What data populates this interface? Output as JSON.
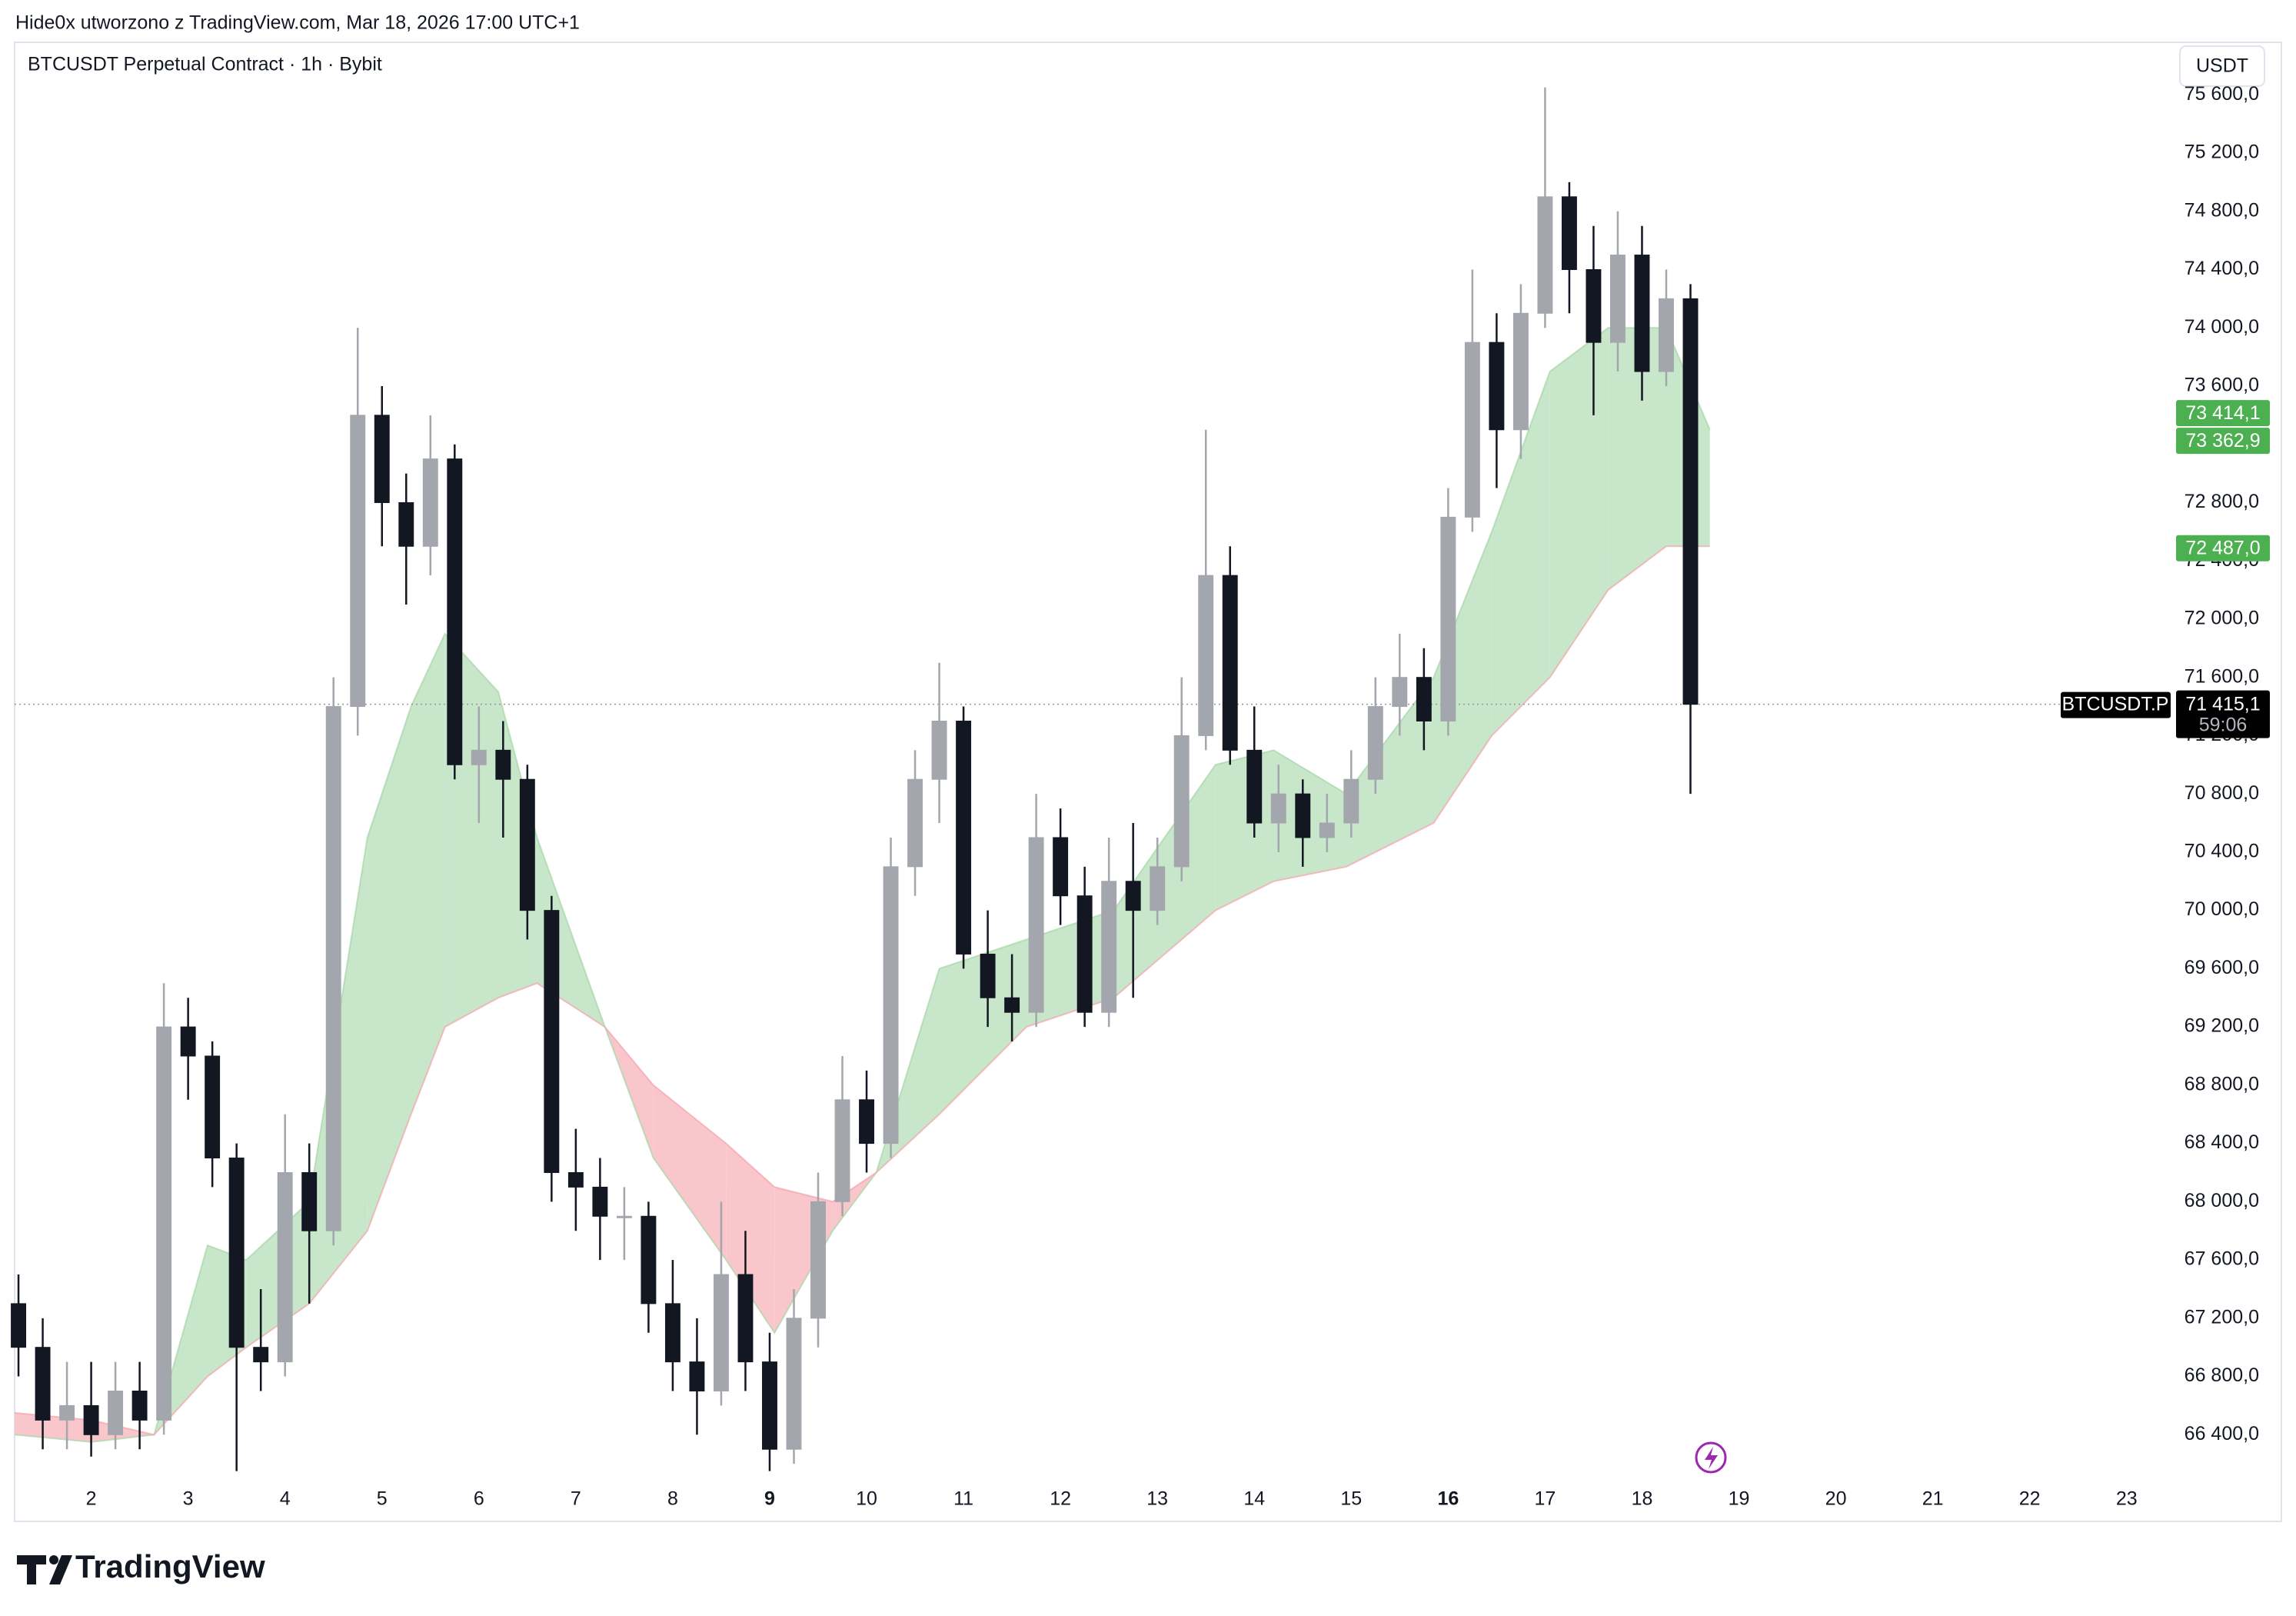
{
  "header": {
    "title": "Hide0x utworzono z TradingView.com, Mar 18, 2026 17:00 UTC+1"
  },
  "footer": {
    "brand": "TradingView"
  },
  "chart_data": {
    "type": "candlestick",
    "title": "BTCUSDT Perpetual Contract · 1h · Bybit",
    "currency": "USDT",
    "up_color": "#a3a6ad",
    "down_color": "#131722",
    "x": [
      1.25,
      1.5,
      1.75,
      2,
      2.25,
      2.5,
      2.75,
      3,
      3.25,
      3.5,
      3.75,
      4,
      4.25,
      4.5,
      4.75,
      5,
      5.25,
      5.5,
      5.75,
      6,
      6.25,
      6.5,
      6.75,
      7,
      7.25,
      7.5,
      7.75,
      8,
      8.25,
      8.5,
      8.75,
      9,
      9.25,
      9.5,
      9.75,
      10,
      10.25,
      10.5,
      10.75,
      11,
      11.25,
      11.5,
      11.75,
      12,
      12.25,
      12.5,
      12.75,
      13,
      13.25,
      13.5,
      13.75,
      14,
      14.25,
      14.5,
      14.75,
      15,
      15.25,
      15.5,
      15.75,
      16,
      16.25,
      16.5,
      16.75,
      17,
      17.25,
      17.5,
      17.75,
      18,
      18.25,
      18.5
    ],
    "open": [
      67300,
      67000,
      66500,
      66600,
      66400,
      66700,
      66500,
      69200,
      69000,
      68300,
      67000,
      66900,
      68200,
      67800,
      71400,
      73400,
      72800,
      72500,
      73100,
      71000,
      71100,
      70900,
      70000,
      68200,
      68100,
      67900,
      67900,
      67300,
      66900,
      66700,
      67500,
      66900,
      66300,
      67200,
      68000,
      68700,
      68400,
      70300,
      70900,
      71300,
      69700,
      69400,
      69300,
      70500,
      70100,
      69300,
      70200,
      70000,
      70300,
      71200,
      72300,
      71100,
      70600,
      70800,
      70500,
      70600,
      70900,
      71400,
      71600,
      71300,
      72700,
      73900,
      73300,
      74100,
      74900,
      74400,
      73900,
      74500,
      73700,
      74200
    ],
    "high": [
      67500,
      67200,
      66900,
      66900,
      66900,
      66900,
      69500,
      69400,
      69100,
      68400,
      67400,
      68600,
      68400,
      71600,
      74000,
      73600,
      73000,
      73400,
      73200,
      71400,
      71300,
      71000,
      70100,
      68500,
      68300,
      68100,
      68000,
      67600,
      67200,
      68000,
      67800,
      67100,
      67400,
      68200,
      69000,
      68900,
      70500,
      71100,
      71700,
      71400,
      70000,
      69700,
      70800,
      70700,
      70300,
      70500,
      70600,
      70500,
      71600,
      73300,
      72500,
      71400,
      71000,
      70900,
      70800,
      71100,
      71600,
      71900,
      71800,
      72900,
      74400,
      74100,
      74300,
      75650,
      75000,
      74700,
      74800,
      74700,
      74400,
      74300
    ],
    "low": [
      66800,
      66300,
      66300,
      66250,
      66300,
      66300,
      66400,
      68700,
      68100,
      66150,
      66700,
      66800,
      67300,
      67700,
      71200,
      72500,
      72100,
      72300,
      70900,
      70600,
      70500,
      69800,
      68000,
      67800,
      67600,
      67600,
      67100,
      66700,
      66400,
      66600,
      66700,
      66150,
      66200,
      67000,
      67900,
      68200,
      68300,
      70100,
      70600,
      69600,
      69200,
      69100,
      69200,
      69900,
      69200,
      69200,
      69400,
      69900,
      70200,
      71100,
      71000,
      70500,
      70400,
      70300,
      70400,
      70500,
      70800,
      71200,
      71100,
      71200,
      72600,
      72900,
      73100,
      74000,
      74100,
      73400,
      73700,
      73500,
      73600,
      70800
    ],
    "close": [
      67000,
      66500,
      66600,
      66400,
      66700,
      66500,
      69200,
      69000,
      68300,
      67000,
      66900,
      68200,
      67800,
      71400,
      73400,
      72800,
      72500,
      73100,
      71000,
      71100,
      70900,
      70000,
      68200,
      68100,
      67900,
      67900,
      67300,
      66900,
      66700,
      67500,
      66900,
      66300,
      67200,
      68000,
      68700,
      68400,
      70300,
      70900,
      71300,
      69700,
      69400,
      69300,
      70500,
      70100,
      69300,
      70200,
      70000,
      70300,
      71200,
      72300,
      71100,
      70600,
      70800,
      70500,
      70600,
      70900,
      71400,
      71600,
      71300,
      72700,
      73900,
      73300,
      74100,
      74900,
      74400,
      73900,
      74500,
      73700,
      74200,
      71415.1
    ],
    "ribbon": {
      "bull_color": "#c8e6c9",
      "bear_color": "#f9c6cb",
      "bull_line": "#a5d6a7",
      "bear_line": "#f4a3ab",
      "x": [
        1.21,
        2.0,
        2.65,
        3.2,
        3.6,
        4.25,
        4.85,
        5.3,
        5.65,
        6.2,
        6.6,
        7.3,
        7.8,
        8.55,
        9.05,
        9.65,
        10.1,
        10.75,
        11.65,
        12.55,
        13.6,
        14.2,
        14.95,
        15.85,
        16.45,
        17.05,
        17.65,
        18.25,
        18.7
      ],
      "fast": [
        66400,
        66350,
        66400,
        67700,
        67600,
        68000,
        70500,
        71400,
        71900,
        71500,
        70500,
        69200,
        68300,
        67600,
        67100,
        67800,
        68200,
        69600,
        69800,
        70000,
        71000,
        71100,
        70800,
        71600,
        72600,
        73700,
        74000,
        74000,
        73300
      ],
      "slow": [
        66550,
        66500,
        66400,
        66800,
        67000,
        67300,
        67800,
        68600,
        69200,
        69400,
        69500,
        69200,
        68800,
        68400,
        68100,
        68000,
        68200,
        68600,
        69200,
        69400,
        70000,
        70200,
        70300,
        70600,
        71200,
        71600,
        72200,
        72500,
        72500
      ]
    },
    "xlim": [
      1.21,
      23.47
    ],
    "xticks": [
      2,
      3,
      4,
      5,
      6,
      7,
      8,
      9,
      10,
      11,
      12,
      13,
      14,
      15,
      16,
      17,
      18,
      19,
      20,
      21,
      22,
      23
    ],
    "xticks_bold": [
      9,
      16
    ],
    "ylim": [
      66090,
      75950
    ],
    "yticks": [
      {
        "value": 66400,
        "label": "66 400,0"
      },
      {
        "value": 66800,
        "label": "66 800,0"
      },
      {
        "value": 67200,
        "label": "67 200,0"
      },
      {
        "value": 67600,
        "label": "67 600,0"
      },
      {
        "value": 68000,
        "label": "68 000,0"
      },
      {
        "value": 68400,
        "label": "68 400,0"
      },
      {
        "value": 68800,
        "label": "68 800,0"
      },
      {
        "value": 69200,
        "label": "69 200,0"
      },
      {
        "value": 69600,
        "label": "69 600,0"
      },
      {
        "value": 70000,
        "label": "70 000,0"
      },
      {
        "value": 70400,
        "label": "70 400,0"
      },
      {
        "value": 70800,
        "label": "70 800,0"
      },
      {
        "value": 71200,
        "label": "71 200,0"
      },
      {
        "value": 71600,
        "label": "71 600,0"
      },
      {
        "value": 72000,
        "label": "72 000,0"
      },
      {
        "value": 72400,
        "label": "72 400,0"
      },
      {
        "value": 72800,
        "label": "72 800,0"
      },
      {
        "value": 73200,
        "label": "73 200,0"
      },
      {
        "value": 73600,
        "label": "73 600,0"
      },
      {
        "value": 74000,
        "label": "74 000,0"
      },
      {
        "value": 74400,
        "label": "74 400,0"
      },
      {
        "value": 74800,
        "label": "74 800,0"
      },
      {
        "value": 75200,
        "label": "75 200,0"
      },
      {
        "value": 75600,
        "label": "75 600,0"
      }
    ],
    "price_labels": [
      {
        "value": 73414.1,
        "label": "73 414,1",
        "color": "#4caf50"
      },
      {
        "value": 73362.9,
        "label": "73 362,9",
        "color": "#4caf50"
      },
      {
        "value": 72487.0,
        "label": "72 487,0",
        "color": "#4caf50"
      }
    ],
    "last_price": {
      "value": 71415.1,
      "label": "71 415,1",
      "countdown": "59:06",
      "symbol": "BTCUSDT.P"
    }
  }
}
